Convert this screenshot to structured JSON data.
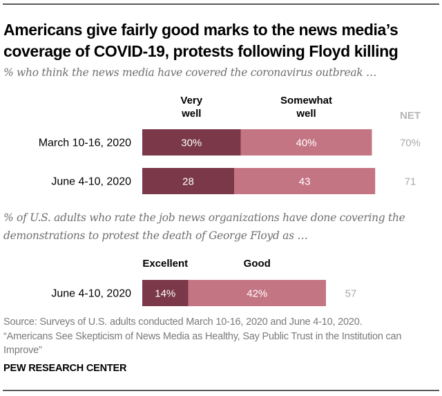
{
  "title": "Americans give fairly good marks to the news media’s coverage of COVID-19, protests following Floyd killing",
  "colors": {
    "dark": "#7a3848",
    "light": "#c47584",
    "net": "#a9a9a9"
  },
  "chart_data": [
    {
      "type": "bar",
      "orientation": "horizontal",
      "stacked": true,
      "subtitle": "% who think the news media have covered the coronavirus outbreak …",
      "categories": [
        "March 10-16, 2020",
        "June 4-10, 2020"
      ],
      "series": [
        {
          "name": "Very well",
          "header_lines": [
            "Very",
            "well"
          ],
          "values": [
            30,
            28
          ],
          "labels": [
            "30%",
            "28"
          ]
        },
        {
          "name": "Somewhat well",
          "header_lines": [
            "Somewhat",
            "well"
          ],
          "values": [
            40,
            43
          ],
          "labels": [
            "40%",
            "43"
          ]
        }
      ],
      "net": {
        "header": "NET",
        "values": [
          70,
          71
        ],
        "labels": [
          "70%",
          "71"
        ]
      },
      "xlim": [
        0,
        100
      ]
    },
    {
      "type": "bar",
      "orientation": "horizontal",
      "stacked": true,
      "subtitle": "% of U.S. adults who rate the job news organizations have done covering the demonstrations to protest the death of George Floyd as …",
      "categories": [
        "June 4-10, 2020"
      ],
      "series": [
        {
          "name": "Excellent",
          "header_lines": [
            "Excellent"
          ],
          "values": [
            14
          ],
          "labels": [
            "14%"
          ]
        },
        {
          "name": "Good",
          "header_lines": [
            "Good"
          ],
          "values": [
            42
          ],
          "labels": [
            "42%"
          ]
        }
      ],
      "net": {
        "header": "",
        "values": [
          57
        ],
        "labels": [
          "57"
        ]
      },
      "xlim": [
        0,
        100
      ]
    }
  ],
  "source": "Source: Surveys of U.S. adults conducted March 10-16, 2020 and June 4-10, 2020.",
  "report_title": "“Americans See Skepticism of News Media as Healthy, Say Public Trust in the Institution can Improve”",
  "brand": "PEW RESEARCH CENTER"
}
